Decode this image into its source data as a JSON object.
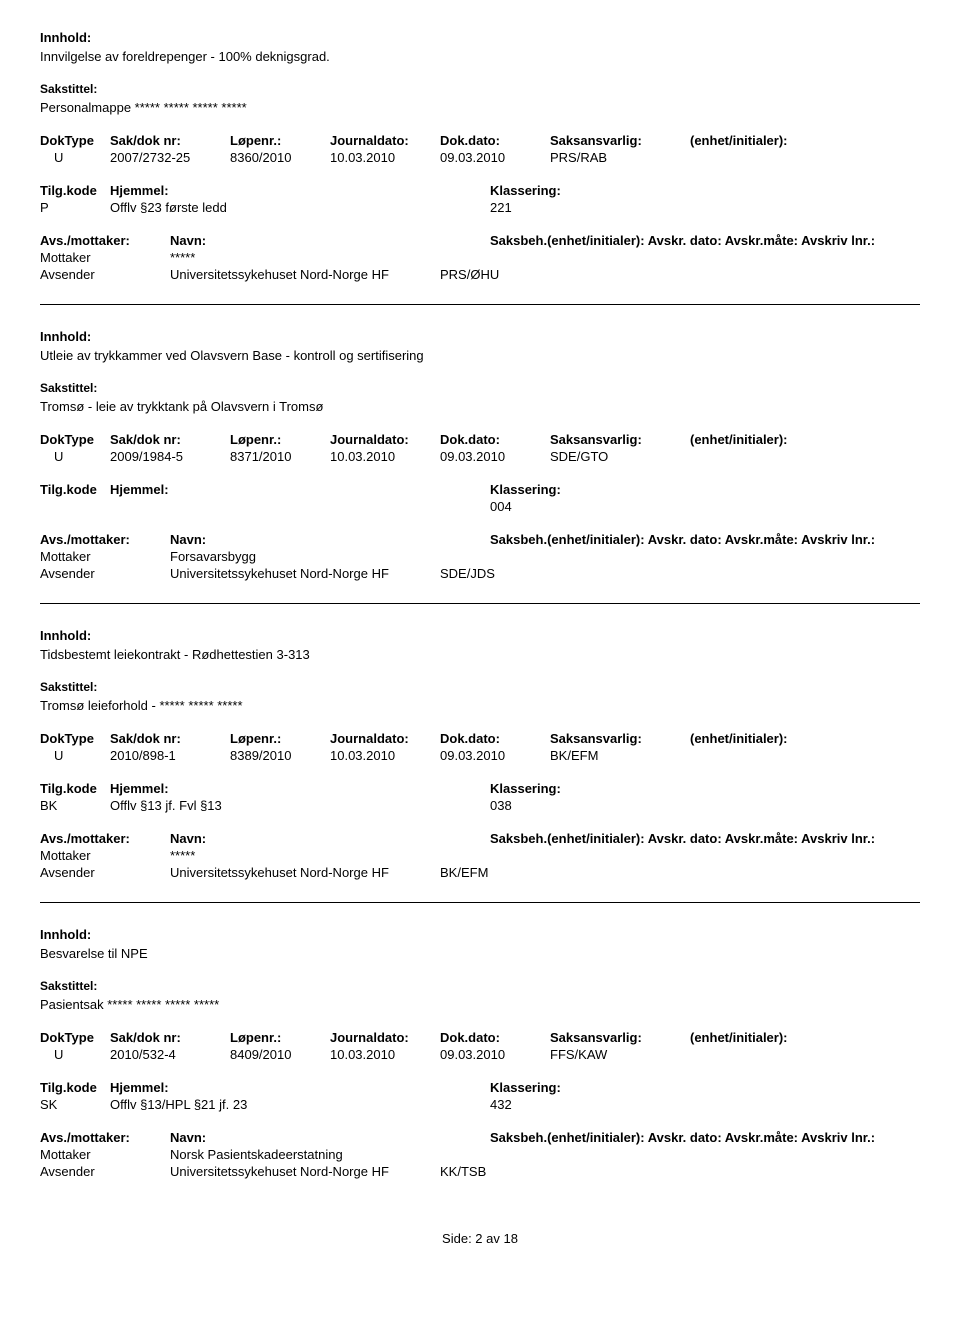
{
  "labels": {
    "innhold": "Innhold:",
    "sakstittel": "Sakstittel:",
    "doktype": "DokType",
    "sakdok": "Sak/dok nr:",
    "lopenr": "Løpenr.:",
    "journaldato": "Journaldato:",
    "dokdato": "Dok.dato:",
    "saksansvarlig": "Saksansvarlig:",
    "enhet": "(enhet/initialer):",
    "tilgkode": "Tilg.kode",
    "hjemmel": "Hjemmel:",
    "klassering": "Klassering:",
    "avsmottaker": "Avs./mottaker:",
    "navn": "Navn:",
    "saksbeh_line": "Saksbeh.(enhet/initialer): Avskr. dato: Avskr.måte: Avskriv lnr.:",
    "mottaker": "Mottaker",
    "avsender": "Avsender"
  },
  "records": [
    {
      "innhold": "Innvilgelse av foreldrepenger - 100% deknigsgrad.",
      "sakstittel": "Personalmappe ***** ***** ***** *****",
      "doktype": "U",
      "sakdok": "2007/2732-25",
      "lopenr": "8360/2010",
      "journaldato": "10.03.2010",
      "dokdato": "09.03.2010",
      "saksansvarlig": "PRS/RAB",
      "tilgkode": "P",
      "hjemmel": "Offlv §23 første ledd",
      "klassering": "221",
      "mottaker": "*****",
      "avsender": "Universitetssykehuset Nord-Norge HF",
      "avsender_unit": "PRS/ØHU"
    },
    {
      "innhold": "Utleie av trykkammer ved Olavsvern Base - kontroll og sertifisering",
      "sakstittel": "Tromsø - leie av trykktank på Olavsvern i Tromsø",
      "doktype": "U",
      "sakdok": "2009/1984-5",
      "lopenr": "8371/2010",
      "journaldato": "10.03.2010",
      "dokdato": "09.03.2010",
      "saksansvarlig": "SDE/GTO",
      "tilgkode": "",
      "hjemmel": "",
      "klassering": "004",
      "mottaker": "Forsavarsbygg",
      "avsender": "Universitetssykehuset Nord-Norge HF",
      "avsender_unit": "SDE/JDS"
    },
    {
      "innhold": "Tidsbestemt leiekontrakt - Rødhettestien 3-313",
      "sakstittel": "Tromsø leieforhold - ***** ***** *****",
      "doktype": "U",
      "sakdok": "2010/898-1",
      "lopenr": "8389/2010",
      "journaldato": "10.03.2010",
      "dokdato": "09.03.2010",
      "saksansvarlig": "BK/EFM",
      "tilgkode": "BK",
      "hjemmel": "Offlv §13 jf. Fvl §13",
      "klassering": "038",
      "mottaker": "*****",
      "avsender": "Universitetssykehuset Nord-Norge HF",
      "avsender_unit": "BK/EFM"
    },
    {
      "innhold": "Besvarelse til NPE",
      "sakstittel": "Pasientsak ***** ***** ***** *****",
      "doktype": "U",
      "sakdok": "2010/532-4",
      "lopenr": "8409/2010",
      "journaldato": "10.03.2010",
      "dokdato": "09.03.2010",
      "saksansvarlig": "FFS/KAW",
      "tilgkode": "SK",
      "hjemmel": "Offlv §13/HPL §21 jf. 23",
      "klassering": "432",
      "mottaker": "Norsk Pasientskadeerstatning",
      "avsender": "Universitetssykehuset Nord-Norge HF",
      "avsender_unit": "KK/TSB"
    }
  ],
  "footer": "Side: 2 av 18"
}
